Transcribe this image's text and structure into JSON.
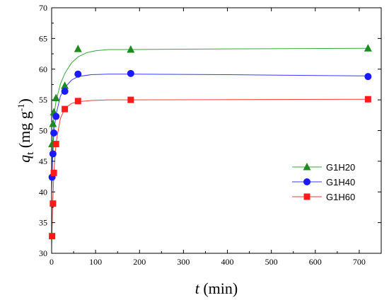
{
  "chart_data": {
    "type": "scatter",
    "xlabel": {
      "symbol": "t",
      "unit": " (min)"
    },
    "ylabel": {
      "symbol": "q",
      "subscript": "t",
      "unit_pre": " (mg g",
      "unit_sup": "-1",
      "unit_post": ")"
    },
    "xlim": [
      0,
      750
    ],
    "ylim": [
      30,
      70
    ],
    "xticks": [
      0,
      100,
      200,
      300,
      400,
      500,
      600,
      700
    ],
    "yticks": [
      30,
      35,
      40,
      45,
      50,
      55,
      60,
      65,
      70
    ],
    "xtick_labels": [
      "0",
      "100",
      "200",
      "300",
      "400",
      "500",
      "600",
      "700"
    ],
    "ytick_labels": [
      "30",
      "35",
      "40",
      "45",
      "50",
      "55",
      "60",
      "65",
      "70"
    ],
    "grid": false,
    "legend_position": "right-middle",
    "series": [
      {
        "name": "G1H20",
        "marker": "triangle",
        "color": "#1f8a1f",
        "line_color": "#3aa83a",
        "points": [
          [
            1,
            47.8
          ],
          [
            3,
            51.1
          ],
          [
            5,
            53.0
          ],
          [
            10,
            55.3
          ],
          [
            30,
            57.3
          ],
          [
            60,
            63.3
          ],
          [
            180,
            63.2
          ],
          [
            720,
            63.4
          ]
        ],
        "fit": [
          [
            0,
            44.0
          ],
          [
            5,
            52.3
          ],
          [
            10,
            54.8
          ],
          [
            20,
            57.6
          ],
          [
            30,
            59.3
          ],
          [
            45,
            61.0
          ],
          [
            60,
            62.0
          ],
          [
            80,
            62.7
          ],
          [
            100,
            63.0
          ],
          [
            130,
            63.2
          ],
          [
            180,
            63.2
          ],
          [
            400,
            63.3
          ],
          [
            720,
            63.4
          ]
        ]
      },
      {
        "name": "G1H40",
        "marker": "circle",
        "color": "#1a1aff",
        "line_color": "#3a3aff",
        "points": [
          [
            1,
            42.4
          ],
          [
            3,
            46.2
          ],
          [
            5,
            49.6
          ],
          [
            10,
            52.3
          ],
          [
            30,
            56.4
          ],
          [
            60,
            59.2
          ],
          [
            180,
            59.3
          ],
          [
            720,
            58.8
          ]
        ],
        "fit": [
          [
            0,
            40.0
          ],
          [
            2,
            45.0
          ],
          [
            5,
            49.6
          ],
          [
            10,
            52.6
          ],
          [
            20,
            55.6
          ],
          [
            30,
            57.0
          ],
          [
            45,
            58.2
          ],
          [
            60,
            58.8
          ],
          [
            90,
            59.1
          ],
          [
            130,
            59.2
          ],
          [
            180,
            59.2
          ],
          [
            400,
            59.1
          ],
          [
            720,
            58.9
          ]
        ]
      },
      {
        "name": "G1H60",
        "marker": "square",
        "color": "#ff1a1a",
        "line_color": "#ff3a3a",
        "points": [
          [
            1,
            32.8
          ],
          [
            3,
            38.1
          ],
          [
            5,
            43.1
          ],
          [
            10,
            47.8
          ],
          [
            30,
            53.5
          ],
          [
            60,
            54.8
          ],
          [
            180,
            55.0
          ],
          [
            720,
            55.1
          ]
        ],
        "fit": [
          [
            0,
            31.0
          ],
          [
            2,
            37.0
          ],
          [
            5,
            43.0
          ],
          [
            10,
            48.0
          ],
          [
            20,
            52.0
          ],
          [
            30,
            53.6
          ],
          [
            45,
            54.4
          ],
          [
            60,
            54.7
          ],
          [
            90,
            54.9
          ],
          [
            130,
            55.0
          ],
          [
            180,
            55.0
          ],
          [
            720,
            55.1
          ]
        ]
      }
    ]
  }
}
